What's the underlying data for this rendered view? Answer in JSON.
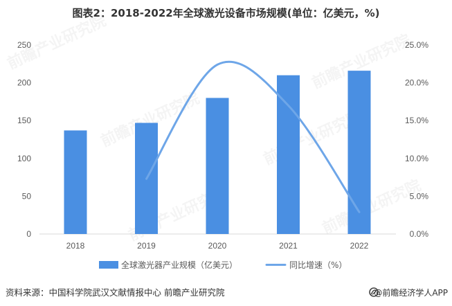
{
  "chart_data": {
    "type": "bar",
    "title": "图表2：2018-2022年全球激光设备市场规模(单位：亿美元，%)",
    "categories": [
      "2018",
      "2019",
      "2020",
      "2021",
      "2022"
    ],
    "series": [
      {
        "name": "全球激光器产业规模（亿美元）",
        "type": "bar",
        "axis": "left",
        "color": "#4a8fe2",
        "values": [
          137,
          147,
          180,
          210,
          216
        ]
      },
      {
        "name": "同比增速（%）",
        "type": "line",
        "axis": "right",
        "smooth": true,
        "color": "#6ea6e8",
        "values": [
          null,
          7.3,
          22.4,
          17.0,
          2.9
        ]
      }
    ],
    "ylim": [
      0,
      250
    ],
    "y_ticks": [
      0,
      50,
      100,
      150,
      200,
      250
    ],
    "y2lim": [
      0,
      25
    ],
    "y2_ticks": [
      0,
      5,
      10,
      15,
      20,
      25
    ],
    "y2_tick_labels": [
      "0.0%",
      "5.0%",
      "10.0%",
      "15.0%",
      "20.0%",
      "25.0%"
    ],
    "grid": false,
    "legend_position": "bottom"
  },
  "source": "资料来源：中国科学院武汉文献情报中心 前瞻产业研究院",
  "brand": "@前瞻经济学人APP",
  "watermark": "前瞻产业研究院",
  "colors": {
    "axis_line": "#d9d9d9",
    "tick_text": "#595959",
    "title_text": "#333333"
  }
}
